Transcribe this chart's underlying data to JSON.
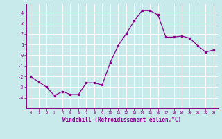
{
  "x": [
    0,
    1,
    2,
    3,
    4,
    5,
    6,
    7,
    8,
    9,
    10,
    11,
    12,
    13,
    14,
    15,
    16,
    17,
    18,
    19,
    20,
    21,
    22,
    23
  ],
  "y": [
    -2.0,
    -2.5,
    -3.0,
    -3.8,
    -3.4,
    -3.7,
    -3.7,
    -2.6,
    -2.6,
    -2.8,
    -0.7,
    0.9,
    2.0,
    3.2,
    4.2,
    4.2,
    3.8,
    1.7,
    1.7,
    1.8,
    1.6,
    0.9,
    0.3,
    0.5
  ],
  "line_color": "#8B008B",
  "marker": "s",
  "marker_size": 1.8,
  "bg_color": "#c8eaea",
  "grid_color": "#ffffff",
  "xlabel": "Windchill (Refroidissement éolien,°C)",
  "xlabel_color": "#8B008B",
  "tick_color": "#8B008B",
  "spine_color": "#8B008B",
  "ylim": [
    -5,
    4.8
  ],
  "xlim": [
    -0.5,
    23.5
  ],
  "yticks": [
    -4,
    -3,
    -2,
    -1,
    0,
    1,
    2,
    3,
    4
  ],
  "xticks": [
    0,
    1,
    2,
    3,
    4,
    5,
    6,
    7,
    8,
    9,
    10,
    11,
    12,
    13,
    14,
    15,
    16,
    17,
    18,
    19,
    20,
    21,
    22,
    23
  ]
}
